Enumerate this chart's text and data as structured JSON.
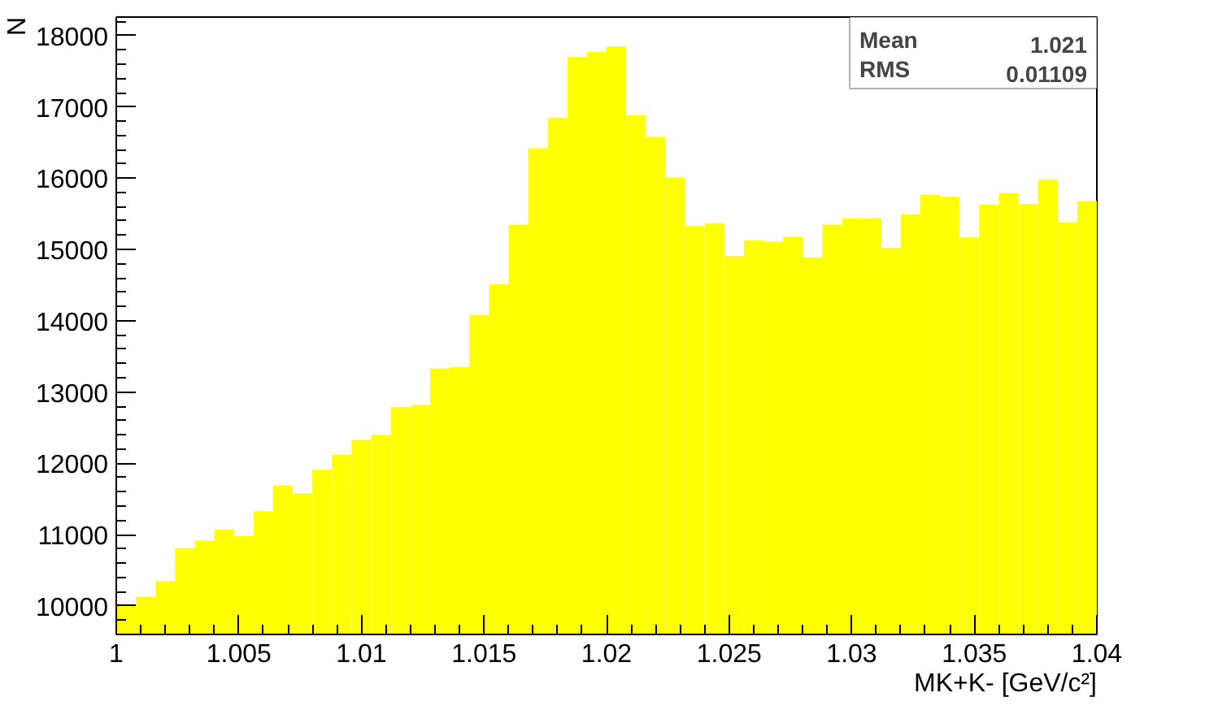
{
  "chart_data": {
    "type": "histogram",
    "xlabel": "MK+K- [GeV/c²]",
    "ylabel": "N",
    "bins": [
      1.0,
      1.0008,
      1.0016,
      1.0024,
      1.0032,
      1.004,
      1.0048,
      1.0056,
      1.0064,
      1.0072,
      1.008,
      1.0088,
      1.0096,
      1.0104,
      1.0112,
      1.012,
      1.0128,
      1.0136,
      1.0144,
      1.0152,
      1.016,
      1.0168,
      1.0176,
      1.0184,
      1.0192,
      1.02,
      1.0208,
      1.0216,
      1.0224,
      1.0232,
      1.024,
      1.0248,
      1.0256,
      1.0264,
      1.0272,
      1.028,
      1.0288,
      1.0296,
      1.0304,
      1.0312,
      1.032,
      1.0328,
      1.0336,
      1.0344,
      1.0352,
      1.036,
      1.0368,
      1.0376,
      1.0384,
      1.0392,
      1.04
    ],
    "values": [
      10000,
      10130,
      10350,
      10810,
      10920,
      11070,
      10980,
      11330,
      11690,
      11580,
      11910,
      12120,
      12330,
      12400,
      12790,
      12820,
      13330,
      13350,
      14080,
      14510,
      15350,
      16420,
      16850,
      17700,
      17770,
      17850,
      16880,
      16580,
      16010,
      15330,
      15370,
      14910,
      15130,
      15110,
      15180,
      14890,
      15350,
      15440,
      15440,
      15020,
      15490,
      15770,
      15740,
      15170,
      15630,
      15790,
      15640,
      15980,
      15380,
      15680
    ],
    "color": "#ffff00",
    "xlim": [
      1.0,
      1.04
    ],
    "ylim": [
      9600,
      18260
    ],
    "xticks": [
      {
        "value": 1.0,
        "label": "1"
      },
      1.005,
      1.01,
      1.015,
      1.02,
      1.025,
      1.03,
      1.035,
      1.04
    ],
    "yticks": [
      10000,
      11000,
      12000,
      13000,
      14000,
      15000,
      16000,
      17000,
      18000
    ],
    "grid": false,
    "annotations": [
      "Mean 1.021",
      "RMS 0.01109"
    ]
  }
}
